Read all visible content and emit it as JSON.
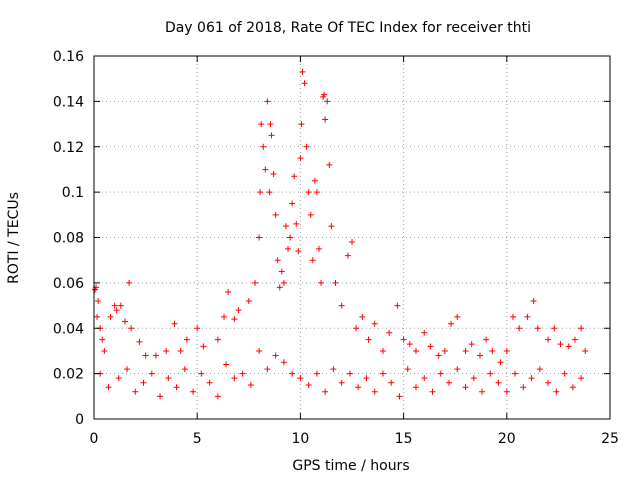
{
  "chart_data": {
    "type": "scatter",
    "title": "Day 061 of 2018, Rate Of TEC Index for receiver thti",
    "xlabel": "GPS time / hours",
    "ylabel": "ROTI / TECUs",
    "xlim": [
      0,
      25
    ],
    "ylim": [
      0,
      0.16
    ],
    "xticks": [
      0,
      5,
      10,
      15,
      20,
      25
    ],
    "xtick_labels": [
      "0",
      "5",
      "10",
      "15",
      "20",
      "25"
    ],
    "yticks": [
      0,
      0.02,
      0.04,
      0.06,
      0.08,
      0.1,
      0.12,
      0.14,
      0.16
    ],
    "ytick_labels": [
      "0",
      "0.02",
      "0.04",
      "0.06",
      "0.08",
      "0.1",
      "0.12",
      "0.14",
      "0.16"
    ],
    "grid": true,
    "marker": "+",
    "marker_color": "#ff0000",
    "series": [
      {
        "name": "ROTI",
        "points": [
          [
            0.05,
            0.057
          ],
          [
            0.1,
            0.058
          ],
          [
            0.2,
            0.052
          ],
          [
            0.15,
            0.045
          ],
          [
            0.3,
            0.04
          ],
          [
            0.4,
            0.035
          ],
          [
            0.5,
            0.03
          ],
          [
            0.8,
            0.045
          ],
          [
            1.0,
            0.05
          ],
          [
            1.1,
            0.048
          ],
          [
            1.3,
            0.05
          ],
          [
            1.5,
            0.043
          ],
          [
            1.7,
            0.06
          ],
          [
            1.8,
            0.04
          ],
          [
            2.2,
            0.034
          ],
          [
            2.5,
            0.028
          ],
          [
            3.0,
            0.028
          ],
          [
            3.5,
            0.03
          ],
          [
            3.9,
            0.042
          ],
          [
            4.2,
            0.03
          ],
          [
            4.5,
            0.035
          ],
          [
            5.0,
            0.04
          ],
          [
            5.3,
            0.032
          ],
          [
            6.0,
            0.035
          ],
          [
            6.3,
            0.045
          ],
          [
            6.5,
            0.056
          ],
          [
            6.8,
            0.044
          ],
          [
            7.0,
            0.048
          ],
          [
            7.5,
            0.052
          ],
          [
            7.8,
            0.06
          ],
          [
            8.0,
            0.08
          ],
          [
            8.05,
            0.1
          ],
          [
            8.1,
            0.13
          ],
          [
            8.2,
            0.12
          ],
          [
            8.3,
            0.11
          ],
          [
            8.4,
            0.14
          ],
          [
            8.5,
            0.1
          ],
          [
            8.55,
            0.13
          ],
          [
            8.6,
            0.125
          ],
          [
            8.7,
            0.108
          ],
          [
            8.8,
            0.09
          ],
          [
            8.9,
            0.07
          ],
          [
            9.0,
            0.058
          ],
          [
            9.1,
            0.065
          ],
          [
            9.2,
            0.06
          ],
          [
            9.3,
            0.085
          ],
          [
            9.4,
            0.075
          ],
          [
            9.5,
            0.08
          ],
          [
            9.6,
            0.095
          ],
          [
            9.7,
            0.107
          ],
          [
            9.8,
            0.086
          ],
          [
            9.9,
            0.074
          ],
          [
            10.0,
            0.115
          ],
          [
            10.05,
            0.13
          ],
          [
            10.1,
            0.153
          ],
          [
            10.2,
            0.148
          ],
          [
            10.3,
            0.12
          ],
          [
            10.4,
            0.1
          ],
          [
            10.5,
            0.09
          ],
          [
            10.6,
            0.07
          ],
          [
            10.7,
            0.105
          ],
          [
            10.8,
            0.1
          ],
          [
            10.9,
            0.075
          ],
          [
            11.0,
            0.06
          ],
          [
            11.1,
            0.142
          ],
          [
            11.15,
            0.143
          ],
          [
            11.2,
            0.132
          ],
          [
            11.3,
            0.14
          ],
          [
            11.4,
            0.112
          ],
          [
            11.5,
            0.085
          ],
          [
            11.7,
            0.06
          ],
          [
            12.0,
            0.05
          ],
          [
            12.3,
            0.072
          ],
          [
            12.5,
            0.078
          ],
          [
            12.7,
            0.04
          ],
          [
            13.0,
            0.045
          ],
          [
            13.3,
            0.035
          ],
          [
            13.6,
            0.042
          ],
          [
            14.0,
            0.03
          ],
          [
            14.3,
            0.038
          ],
          [
            14.7,
            0.05
          ],
          [
            15.0,
            0.035
          ],
          [
            15.3,
            0.033
          ],
          [
            15.6,
            0.03
          ],
          [
            16.0,
            0.038
          ],
          [
            16.3,
            0.032
          ],
          [
            16.7,
            0.028
          ],
          [
            17.0,
            0.03
          ],
          [
            17.3,
            0.042
          ],
          [
            17.6,
            0.045
          ],
          [
            18.0,
            0.03
          ],
          [
            18.3,
            0.033
          ],
          [
            18.7,
            0.028
          ],
          [
            19.0,
            0.035
          ],
          [
            19.3,
            0.03
          ],
          [
            19.7,
            0.025
          ],
          [
            20.0,
            0.03
          ],
          [
            20.3,
            0.045
          ],
          [
            20.6,
            0.04
          ],
          [
            21.0,
            0.045
          ],
          [
            21.3,
            0.052
          ],
          [
            21.5,
            0.04
          ],
          [
            22.0,
            0.035
          ],
          [
            22.3,
            0.04
          ],
          [
            22.6,
            0.033
          ],
          [
            23.0,
            0.032
          ],
          [
            23.3,
            0.035
          ],
          [
            23.6,
            0.04
          ],
          [
            23.8,
            0.03
          ],
          [
            0.3,
            0.02
          ],
          [
            0.7,
            0.014
          ],
          [
            1.2,
            0.018
          ],
          [
            1.6,
            0.022
          ],
          [
            2.0,
            0.012
          ],
          [
            2.4,
            0.016
          ],
          [
            2.8,
            0.02
          ],
          [
            3.2,
            0.01
          ],
          [
            3.6,
            0.018
          ],
          [
            4.0,
            0.014
          ],
          [
            4.4,
            0.022
          ],
          [
            4.8,
            0.012
          ],
          [
            5.2,
            0.02
          ],
          [
            5.6,
            0.016
          ],
          [
            6.0,
            0.01
          ],
          [
            6.4,
            0.024
          ],
          [
            6.8,
            0.018
          ],
          [
            7.2,
            0.02
          ],
          [
            7.6,
            0.015
          ],
          [
            8.0,
            0.03
          ],
          [
            8.4,
            0.022
          ],
          [
            8.8,
            0.028
          ],
          [
            9.2,
            0.025
          ],
          [
            9.6,
            0.02
          ],
          [
            10.0,
            0.018
          ],
          [
            10.4,
            0.015
          ],
          [
            10.8,
            0.02
          ],
          [
            11.2,
            0.012
          ],
          [
            11.6,
            0.022
          ],
          [
            12.0,
            0.016
          ],
          [
            12.4,
            0.02
          ],
          [
            12.8,
            0.014
          ],
          [
            13.2,
            0.018
          ],
          [
            13.6,
            0.012
          ],
          [
            14.0,
            0.02
          ],
          [
            14.4,
            0.016
          ],
          [
            14.8,
            0.01
          ],
          [
            15.2,
            0.022
          ],
          [
            15.6,
            0.014
          ],
          [
            16.0,
            0.018
          ],
          [
            16.4,
            0.012
          ],
          [
            16.8,
            0.02
          ],
          [
            17.2,
            0.016
          ],
          [
            17.6,
            0.022
          ],
          [
            18.0,
            0.014
          ],
          [
            18.4,
            0.018
          ],
          [
            18.8,
            0.012
          ],
          [
            19.2,
            0.02
          ],
          [
            19.6,
            0.016
          ],
          [
            20.0,
            0.012
          ],
          [
            20.4,
            0.02
          ],
          [
            20.8,
            0.014
          ],
          [
            21.2,
            0.018
          ],
          [
            21.6,
            0.022
          ],
          [
            22.0,
            0.016
          ],
          [
            22.4,
            0.012
          ],
          [
            22.8,
            0.02
          ],
          [
            23.2,
            0.014
          ],
          [
            23.6,
            0.018
          ]
        ]
      }
    ]
  }
}
